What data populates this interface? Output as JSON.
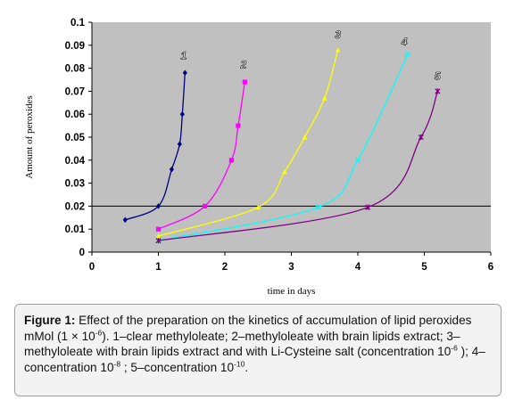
{
  "chart_data": {
    "type": "line",
    "xlabel": "time in days",
    "ylabel": "Amount of peroxides",
    "xlim": [
      0,
      6
    ],
    "ylim": [
      0,
      0.1
    ],
    "x_ticks": [
      {
        "value": 0,
        "label": "0"
      },
      {
        "value": 1,
        "label": "1"
      },
      {
        "value": 2,
        "label": "2"
      },
      {
        "value": 3,
        "label": "3"
      },
      {
        "value": 4,
        "label": "4"
      },
      {
        "value": 5,
        "label": "5"
      },
      {
        "value": 6,
        "label": "6"
      }
    ],
    "y_ticks": [
      {
        "value": 0,
        "label": "0"
      },
      {
        "value": 0.01,
        "label": "0.01"
      },
      {
        "value": 0.02,
        "label": "0.02"
      },
      {
        "value": 0.03,
        "label": "0.03"
      },
      {
        "value": 0.04,
        "label": "0.04"
      },
      {
        "value": 0.05,
        "label": "0.05"
      },
      {
        "value": 0.06,
        "label": "0.06"
      },
      {
        "value": 0.07,
        "label": "0.07"
      },
      {
        "value": 0.08,
        "label": "0.08"
      },
      {
        "value": 0.09,
        "label": "0.09"
      },
      {
        "value": 0.1,
        "label": "0.1"
      }
    ],
    "background": "#c0c0c0",
    "reference_line": {
      "y": 0.02,
      "color": "#000000"
    },
    "series": [
      {
        "label": "1",
        "color": "#000080",
        "marker": "diamond",
        "points": [
          [
            0.5,
            0.014
          ],
          [
            1.0,
            0.02
          ],
          [
            1.2,
            0.036
          ],
          [
            1.32,
            0.047
          ],
          [
            1.36,
            0.06
          ],
          [
            1.4,
            0.078
          ]
        ],
        "label_at": [
          1.38,
          0.084
        ]
      },
      {
        "label": "2",
        "color": "#ff00ff",
        "marker": "square",
        "points": [
          [
            1.0,
            0.01
          ],
          [
            1.7,
            0.02
          ],
          [
            2.1,
            0.04
          ],
          [
            2.2,
            0.055
          ],
          [
            2.3,
            0.074
          ]
        ],
        "label_at": [
          2.28,
          0.08
        ]
      },
      {
        "label": "3",
        "color": "#ffff00",
        "marker": "triangle",
        "points": [
          [
            1.0,
            0.007
          ],
          [
            2.5,
            0.0195
          ],
          [
            2.9,
            0.035
          ],
          [
            3.2,
            0.05
          ],
          [
            3.5,
            0.067
          ],
          [
            3.7,
            0.088
          ]
        ],
        "label_at": [
          3.7,
          0.093
        ]
      },
      {
        "label": "4",
        "color": "#00ffff",
        "marker": "x",
        "points": [
          [
            1.0,
            0.005
          ],
          [
            3.4,
            0.0195
          ],
          [
            4.0,
            0.04
          ],
          [
            4.75,
            0.086
          ]
        ],
        "label_at": [
          4.7,
          0.09
        ]
      },
      {
        "label": "5",
        "color": "#800080",
        "marker": "asterisk",
        "points": [
          [
            1.0,
            0.005
          ],
          [
            4.15,
            0.0195
          ],
          [
            4.95,
            0.05
          ],
          [
            5.2,
            0.07
          ]
        ],
        "label_at": [
          5.2,
          0.075
        ]
      }
    ]
  },
  "caption": {
    "label": "Figure 1:",
    "p1": " Effect of the preparation on the kinetics of accumulation of lipid peroxides mMol (1 × 10",
    "sup1": "-6",
    "p2": "). 1–clear methyloleate; 2–methyloleate with brain lipids extract; 3–methyloleate with brain lipids extract and with Li-Cysteine salt (concentration 10",
    "sup2": "-6",
    "p3": " ); 4–concentration 10",
    "sup3": "-8",
    "p4": " ; 5–concentration 10",
    "sup4": "-10",
    "p5": "."
  }
}
